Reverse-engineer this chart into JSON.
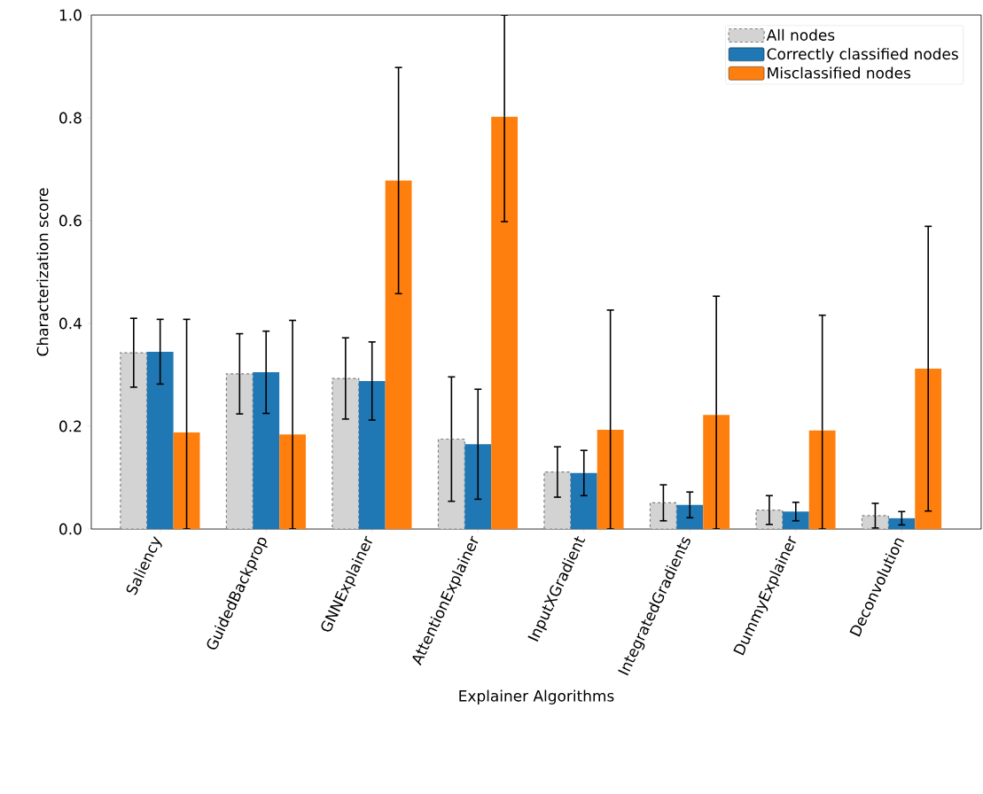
{
  "chart_data": {
    "type": "bar",
    "xlabel": "Explainer Algorithms",
    "ylabel": "Characterization score",
    "categories": [
      "Saliency",
      "GuidedBackprop",
      "GNNExplainer",
      "AttentionExplainer",
      "InputXGradient",
      "IntegratedGradients",
      "DummyExplainer",
      "Deconvolution"
    ],
    "series": [
      {
        "name": "All nodes",
        "color": "#d3d3d3",
        "line_style": "dashed",
        "values": [
          0.343,
          0.302,
          0.293,
          0.175,
          0.111,
          0.051,
          0.037,
          0.026
        ],
        "errors": [
          0.067,
          0.078,
          0.079,
          0.121,
          0.049,
          0.035,
          0.028,
          0.024
        ]
      },
      {
        "name": "Correctly classified nodes",
        "color": "#1f77b4",
        "values": [
          0.345,
          0.305,
          0.288,
          0.165,
          0.109,
          0.047,
          0.034,
          0.021
        ],
        "errors": [
          0.063,
          0.08,
          0.076,
          0.107,
          0.044,
          0.025,
          0.018,
          0.013
        ]
      },
      {
        "name": "Misclassified nodes",
        "color": "#ff7f0e",
        "values": [
          0.188,
          0.184,
          0.678,
          0.802,
          0.193,
          0.222,
          0.192,
          0.312
        ],
        "errors": [
          [
            0,
            0.408
          ],
          [
            0,
            0.406
          ],
          0.22,
          [
            0.598,
            1.0
          ],
          [
            0,
            0.426
          ],
          [
            0,
            0.453
          ],
          [
            0,
            0.416
          ],
          0.277
        ]
      }
    ],
    "ylim": [
      0,
      1
    ],
    "yticks": [
      {
        "value": 0,
        "label": "0.0"
      },
      {
        "value": 0.2,
        "label": "0.2"
      },
      {
        "value": 0.4,
        "label": "0.4"
      },
      {
        "value": 0.6,
        "label": "0.6"
      },
      {
        "value": 0.8,
        "label": "0.8"
      },
      {
        "value": 1,
        "label": "1.0"
      }
    ],
    "legend": "top right"
  }
}
